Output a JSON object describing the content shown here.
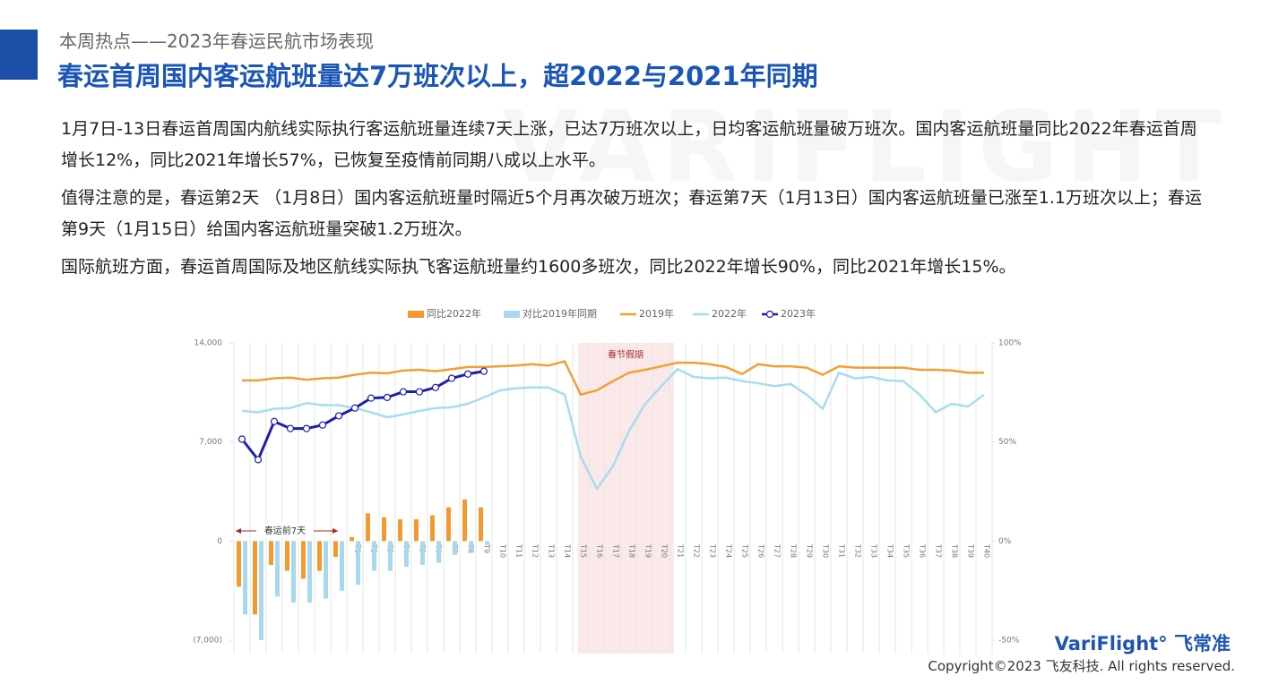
{
  "header": {
    "kicker": "本周热点——2023年春运民航市场表现",
    "title": "春运首周国内客运航班量达7万班次以上，超2022与2021年同期"
  },
  "paragraphs": [
    "1月7日-13日春运首周国内航线实际执行客运航班量连续7天上涨，已达7万班次以上，日均客运航班量破万班次。国内客运航班量同比2022年春运首周增长12%，同比2021年增长57%，已恢复至疫情前同期八成以上水平。",
    "值得注意的是，春运第2天 （1月8日）国内客运航班量时隔近5个月再次破万班次；春运第7天（1月13日）国内客运航班量已涨至1.1万班次以上；春运第9天（1月15日）给国内客运航班量突破1.2万班次。",
    "国际航班方面，春运首周国际及地区航线实际执飞客运航班量约1600多班次，同比2022年增长90%，同比2021年增长15%。"
  ],
  "watermark": "VARIFLIGHT",
  "footer": {
    "logo": "VariFlight°",
    "logo_cn": "飞常准",
    "copyright": "Copyright©2023 飞友科技. All rights reserved."
  },
  "chart_data": {
    "type": "bar-line",
    "annotations": [
      "春节假期",
      "春运前7天"
    ],
    "categories": [
      null,
      null,
      null,
      null,
      null,
      null,
      null,
      "T1",
      "T2",
      "T3",
      "T4",
      "T5",
      "T6",
      "T7",
      "T8",
      "T9",
      "T10",
      "T11",
      "T12",
      "T13",
      "T14",
      "T15",
      "T16",
      "T17",
      "T18",
      "T19",
      "T20",
      "T21",
      "T22",
      "T23",
      "T24",
      "T25",
      "T26",
      "T27",
      "T28",
      "T29",
      "T30",
      "T31",
      "T32",
      "T33",
      "T34",
      "T35",
      "T36",
      "T37",
      "T38",
      "T39",
      "T40"
    ],
    "ylim": [
      -7000,
      14000
    ],
    "yticks": [
      {
        "value": -7000,
        "label": "(7,000)"
      },
      0,
      {
        "value": 7000,
        "label": "7,000"
      },
      {
        "value": 14000,
        "label": "14,000"
      }
    ],
    "y2lim": [
      -50,
      100
    ],
    "y2ticks": [
      {
        "value": -50,
        "label": "-50%"
      },
      {
        "value": 0,
        "label": "0%"
      },
      {
        "value": 50,
        "label": "50%"
      },
      {
        "value": 100,
        "label": "100%"
      }
    ],
    "series": [
      {
        "name": "同比2022年",
        "kind": "bar",
        "axis": "y2",
        "color": "#f29a2e",
        "values": [
          -23,
          -37,
          -12,
          -15,
          -19,
          -15,
          -8,
          2,
          14,
          12,
          11,
          11,
          13,
          17,
          21,
          17,
          null,
          null,
          null,
          null,
          null,
          null,
          null,
          null,
          null,
          null,
          null,
          null,
          null,
          null,
          null,
          null,
          null,
          null,
          null,
          null,
          null,
          null,
          null,
          null,
          null,
          null,
          null,
          null,
          null,
          null,
          null
        ]
      },
      {
        "name": "对比2019年同期",
        "kind": "bar",
        "axis": "y2",
        "color": "#a8d8ee",
        "values": [
          -37,
          -50,
          -28,
          -31,
          -31,
          -29,
          -25,
          -22,
          -15,
          -15,
          -13,
          -12,
          -11,
          -7,
          -4,
          -2,
          null,
          null,
          null,
          null,
          null,
          null,
          null,
          null,
          null,
          null,
          null,
          null,
          null,
          null,
          null,
          null,
          null,
          null,
          null,
          null,
          null,
          null,
          null,
          null,
          null,
          null,
          null,
          null,
          null,
          null,
          null
        ]
      },
      {
        "name": "2019年",
        "kind": "line",
        "color": "#f0a030",
        "values": [
          11350,
          11350,
          11500,
          11550,
          11400,
          11500,
          11550,
          11750,
          11900,
          11850,
          12050,
          12100,
          12000,
          12150,
          12300,
          12300,
          12350,
          12400,
          12500,
          12400,
          12700,
          10350,
          10650,
          11300,
          11900,
          12100,
          12350,
          12600,
          12600,
          12500,
          12300,
          11800,
          12500,
          12350,
          12350,
          12250,
          11750,
          12350,
          12250,
          12250,
          12250,
          12250,
          12100,
          12100,
          12050,
          11900,
          11900
        ]
      },
      {
        "name": "2022年",
        "kind": "line",
        "color": "#a7dcf0",
        "values": [
          9200,
          9100,
          9350,
          9400,
          9750,
          9600,
          9600,
          9400,
          9100,
          8750,
          8950,
          9200,
          9400,
          9450,
          9700,
          10150,
          10650,
          10800,
          10850,
          10850,
          10350,
          5950,
          3700,
          5300,
          7800,
          9700,
          10950,
          12150,
          11600,
          11500,
          11550,
          11300,
          11150,
          10950,
          11100,
          10350,
          9350,
          11900,
          11500,
          11600,
          11350,
          11300,
          10350,
          9100,
          9700,
          9500,
          10350
        ]
      },
      {
        "name": "2023年",
        "kind": "line",
        "markers": true,
        "color": "#1f1fae",
        "values": [
          7200,
          5750,
          8450,
          7950,
          7950,
          8200,
          8850,
          9400,
          10100,
          10150,
          10550,
          10550,
          10850,
          11500,
          11800,
          12000,
          null,
          null,
          null,
          null,
          null,
          null,
          null,
          null,
          null,
          null,
          null,
          null,
          null,
          null,
          null,
          null,
          null,
          null,
          null,
          null,
          null,
          null,
          null,
          null,
          null,
          null,
          null,
          null,
          null,
          null,
          null
        ]
      }
    ]
  }
}
